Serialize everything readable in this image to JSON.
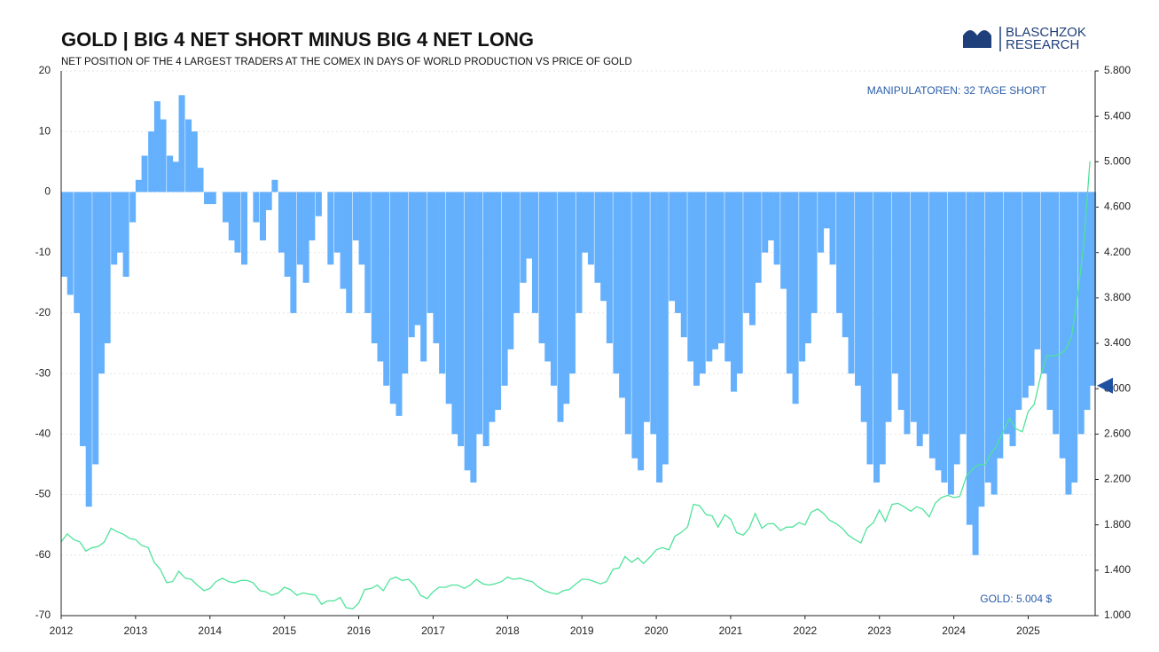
{
  "chart_data": {
    "type": "bar_line",
    "title": "GOLD | BIG 4 NET SHORT MINUS BIG 4 NET LONG",
    "subtitle": "NET POSITION OF THE 4 LARGEST TRADERS AT THE COMEX IN DAYS OF WORLD PRODUCTION VS PRICE OF GOLD",
    "logo": [
      "BLASCHZOK",
      "RESEARCH"
    ],
    "annotations": [
      "MANIPULATOREN: 32 TAGE SHORT",
      "GOLD: 5.004 $"
    ],
    "x": [
      2012.0,
      2012.08,
      2012.17,
      2012.25,
      2012.33,
      2012.42,
      2012.5,
      2012.58,
      2012.67,
      2012.75,
      2012.83,
      2012.92,
      2013.0,
      2013.08,
      2013.17,
      2013.25,
      2013.33,
      2013.42,
      2013.5,
      2013.58,
      2013.67,
      2013.75,
      2013.83,
      2013.92,
      2014.0,
      2014.08,
      2014.17,
      2014.25,
      2014.33,
      2014.42,
      2014.5,
      2014.58,
      2014.67,
      2014.75,
      2014.83,
      2014.92,
      2015.0,
      2015.08,
      2015.17,
      2015.25,
      2015.33,
      2015.42,
      2015.5,
      2015.58,
      2015.67,
      2015.75,
      2015.83,
      2015.92,
      2016.0,
      2016.08,
      2016.17,
      2016.25,
      2016.33,
      2016.42,
      2016.5,
      2016.58,
      2016.67,
      2016.75,
      2016.83,
      2016.92,
      2017.0,
      2017.08,
      2017.17,
      2017.25,
      2017.33,
      2017.42,
      2017.5,
      2017.58,
      2017.67,
      2017.75,
      2017.83,
      2017.92,
      2018.0,
      2018.08,
      2018.17,
      2018.25,
      2018.33,
      2018.42,
      2018.5,
      2018.58,
      2018.67,
      2018.75,
      2018.83,
      2018.92,
      2019.0,
      2019.08,
      2019.17,
      2019.25,
      2019.33,
      2019.42,
      2019.5,
      2019.58,
      2019.67,
      2019.75,
      2019.83,
      2019.92,
      2020.0,
      2020.08,
      2020.17,
      2020.25,
      2020.33,
      2020.42,
      2020.5,
      2020.58,
      2020.67,
      2020.75,
      2020.83,
      2020.92,
      2021.0,
      2021.08,
      2021.17,
      2021.25,
      2021.33,
      2021.42,
      2021.5,
      2021.58,
      2021.67,
      2021.75,
      2021.83,
      2021.92,
      2022.0,
      2022.08,
      2022.17,
      2022.25,
      2022.33,
      2022.42,
      2022.5,
      2022.58,
      2022.67,
      2022.75,
      2022.83,
      2022.92,
      2023.0,
      2023.08,
      2023.17,
      2023.25,
      2023.33,
      2023.42,
      2023.5,
      2023.58,
      2023.67,
      2023.75,
      2023.83,
      2023.92,
      2024.0,
      2024.08,
      2024.17,
      2024.25,
      2024.33,
      2024.42,
      2024.5,
      2024.58,
      2024.67,
      2024.75,
      2024.83,
      2024.92,
      2025.0,
      2025.08,
      2025.17,
      2025.25,
      2025.33,
      2025.42,
      2025.5,
      2025.58,
      2025.67,
      2025.75,
      2025.83
    ],
    "series": [
      {
        "name": "Big 4 Net Position",
        "type": "bar",
        "axis": "y",
        "color": "#64b0fc",
        "values": [
          -14,
          -17,
          -20,
          -42,
          -52,
          -45,
          -30,
          -25,
          -12,
          -10,
          -14,
          -5,
          2,
          6,
          10,
          15,
          12,
          6,
          5,
          16,
          12,
          10,
          4,
          -2,
          -2,
          0,
          -5,
          -8,
          -10,
          -12,
          0,
          -5,
          -8,
          -3,
          2,
          -10,
          -14,
          -20,
          -12,
          -15,
          -8,
          -4,
          0,
          -12,
          -10,
          -16,
          -20,
          -8,
          -12,
          -20,
          -25,
          -28,
          -32,
          -35,
          -37,
          -30,
          -24,
          -22,
          -28,
          -20,
          -25,
          -30,
          -35,
          -40,
          -42,
          -46,
          -48,
          -40,
          -42,
          -38,
          -36,
          -32,
          -26,
          -20,
          -15,
          -11,
          -20,
          -25,
          -28,
          -32,
          -38,
          -35,
          -30,
          -20,
          -10,
          -12,
          -15,
          -18,
          -25,
          -30,
          -34,
          -40,
          -44,
          -46,
          -38,
          -40,
          -48,
          -45,
          -18,
          -20,
          -24,
          -28,
          -32,
          -30,
          -28,
          -26,
          -25,
          -28,
          -33,
          -30,
          -20,
          -22,
          -15,
          -10,
          -8,
          -12,
          -16,
          -30,
          -35,
          -28,
          -25,
          -20,
          -10,
          -6,
          -12,
          -20,
          -24,
          -30,
          -32,
          -38,
          -45,
          -48,
          -45,
          -38,
          -30,
          -36,
          -40,
          -38,
          -42,
          -40,
          -44,
          -46,
          -48,
          -50,
          -45,
          -40,
          -55,
          -60,
          -52,
          -48,
          -50,
          -44,
          -40,
          -42,
          -36,
          -34,
          -32,
          -26,
          -30,
          -36,
          -40,
          -44,
          -50,
          -48,
          -40,
          -36,
          -32
        ]
      },
      {
        "name": "Gold",
        "type": "line",
        "axis": "y2",
        "color": "#4fe39a",
        "values": [
          1650,
          1720,
          1670,
          1650,
          1570,
          1600,
          1610,
          1650,
          1770,
          1740,
          1720,
          1680,
          1670,
          1620,
          1600,
          1470,
          1410,
          1290,
          1300,
          1390,
          1330,
          1320,
          1270,
          1220,
          1240,
          1300,
          1330,
          1300,
          1290,
          1310,
          1310,
          1290,
          1220,
          1210,
          1180,
          1200,
          1250,
          1230,
          1180,
          1200,
          1190,
          1180,
          1100,
          1130,
          1130,
          1160,
          1070,
          1060,
          1110,
          1230,
          1240,
          1270,
          1220,
          1320,
          1340,
          1310,
          1320,
          1270,
          1180,
          1150,
          1210,
          1250,
          1250,
          1270,
          1270,
          1240,
          1270,
          1320,
          1280,
          1270,
          1280,
          1300,
          1340,
          1320,
          1330,
          1310,
          1300,
          1250,
          1220,
          1200,
          1190,
          1220,
          1230,
          1280,
          1320,
          1320,
          1300,
          1280,
          1300,
          1410,
          1420,
          1520,
          1470,
          1510,
          1460,
          1520,
          1580,
          1600,
          1580,
          1700,
          1730,
          1780,
          1980,
          1970,
          1890,
          1880,
          1780,
          1890,
          1850,
          1730,
          1710,
          1770,
          1900,
          1770,
          1810,
          1810,
          1750,
          1780,
          1780,
          1820,
          1800,
          1910,
          1940,
          1900,
          1840,
          1810,
          1770,
          1710,
          1670,
          1640,
          1770,
          1820,
          1930,
          1830,
          1980,
          1990,
          1960,
          1920,
          1960,
          1940,
          1870,
          1990,
          2040,
          2060,
          2040,
          2050,
          2230,
          2290,
          2330,
          2330,
          2430,
          2500,
          2630,
          2740,
          2650,
          2620,
          2800,
          2860,
          3120,
          3290,
          3290,
          3300,
          3340,
          3450,
          3850,
          4300,
          5004
        ]
      }
    ],
    "xlim": [
      2012,
      2025.9
    ],
    "xticks": [
      2012,
      2013,
      2014,
      2015,
      2016,
      2017,
      2018,
      2019,
      2020,
      2021,
      2022,
      2023,
      2024,
      2025
    ],
    "ylim": [
      -70,
      20
    ],
    "yticks": [
      -70,
      -60,
      -50,
      -40,
      -30,
      -20,
      -10,
      0,
      10,
      20
    ],
    "y2lim": [
      1000,
      5800
    ],
    "y2ticks": [
      {
        "value": 1000,
        "label": "1.000"
      },
      {
        "value": 1400,
        "label": "1.400"
      },
      {
        "value": 1800,
        "label": "1.800"
      },
      {
        "value": 2200,
        "label": "2.200"
      },
      {
        "value": 2600,
        "label": "2.600"
      },
      {
        "value": 3000,
        "label": "3.000"
      },
      {
        "value": 3400,
        "label": "3.400"
      },
      {
        "value": 3800,
        "label": "3.800"
      },
      {
        "value": 4200,
        "label": "4.200"
      },
      {
        "value": 4600,
        "label": "4.600"
      },
      {
        "value": 5000,
        "label": "5.000"
      },
      {
        "value": 5400,
        "label": "5.400"
      },
      {
        "value": 5800,
        "label": "5.800"
      }
    ],
    "grid": true
  }
}
